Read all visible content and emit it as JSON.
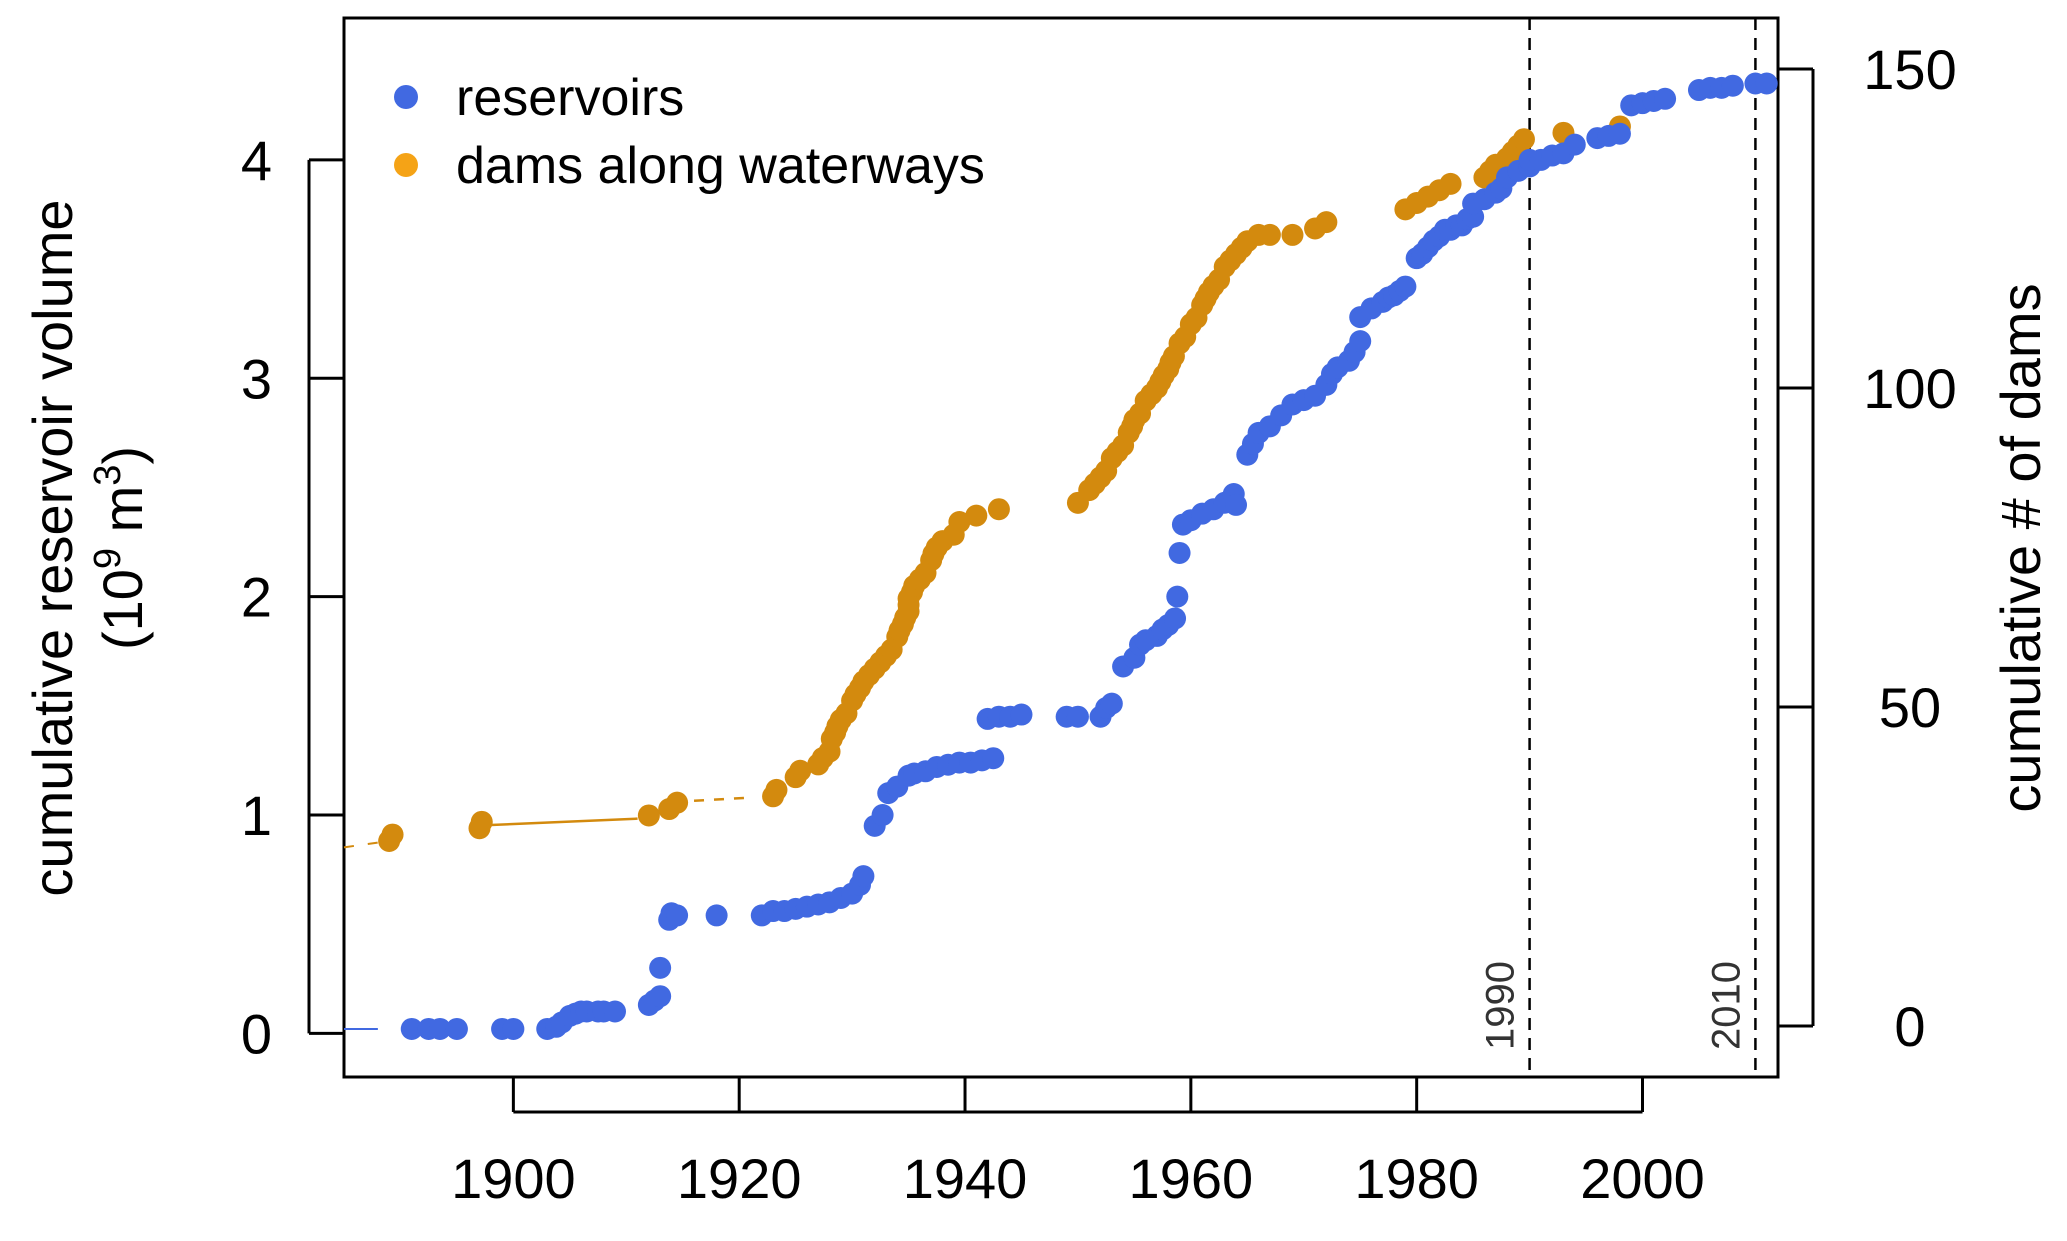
{
  "chart_data": {
    "type": "scatter",
    "xlim": [
      1885,
      2012
    ],
    "ylim_left": [
      -0.2,
      4.65
    ],
    "ylim_right": [
      -8,
      158
    ],
    "x_ticks": [
      "1900",
      "1920",
      "1940",
      "1960",
      "1980",
      "2000"
    ],
    "y_left_ticks": [
      "0",
      "1",
      "2",
      "3",
      "4"
    ],
    "y_right_ticks": [
      "0",
      "50",
      "100",
      "150"
    ],
    "ylabel_left_line1": "cumulative reservoir volume",
    "ylabel_left_line2_prefix": "(10",
    "ylabel_left_line2_exp1": "9",
    "ylabel_left_line2_mid": " m",
    "ylabel_left_line2_exp2": "3",
    "ylabel_left_line2_suffix": ")",
    "ylabel_right": "cumulative # of dams",
    "legend": {
      "position": "top-left",
      "entries": [
        "reservoirs",
        "dams along waterways"
      ]
    },
    "reference_lines": [
      {
        "x": 1990,
        "label": "1990"
      },
      {
        "x": 2010,
        "label": "2010"
      }
    ],
    "colors": {
      "reservoirs": "#4169E1",
      "dams": "#D38A0E"
    },
    "series": [
      {
        "name": "reservoirs",
        "axis": "left",
        "points": [
          [
            1891,
            0.02
          ],
          [
            1892.5,
            0.02
          ],
          [
            1893.5,
            0.02
          ],
          [
            1895,
            0.02
          ],
          [
            1899,
            0.02
          ],
          [
            1900,
            0.02
          ],
          [
            1903,
            0.02
          ],
          [
            1903.8,
            0.03
          ],
          [
            1904.3,
            0.05
          ],
          [
            1905,
            0.08
          ],
          [
            1905.5,
            0.09
          ],
          [
            1906,
            0.1
          ],
          [
            1906.5,
            0.1
          ],
          [
            1907.5,
            0.1
          ],
          [
            1908,
            0.1
          ],
          [
            1909,
            0.1
          ],
          [
            1912,
            0.13
          ],
          [
            1912.5,
            0.15
          ],
          [
            1913,
            0.17
          ],
          [
            1913,
            0.3
          ],
          [
            1913.8,
            0.52
          ],
          [
            1914,
            0.55
          ],
          [
            1914.5,
            0.54
          ],
          [
            1918,
            0.54
          ],
          [
            1922,
            0.54
          ],
          [
            1923,
            0.56
          ],
          [
            1924,
            0.56
          ],
          [
            1925,
            0.57
          ],
          [
            1926,
            0.58
          ],
          [
            1927,
            0.59
          ],
          [
            1928,
            0.6
          ],
          [
            1929,
            0.62
          ],
          [
            1930,
            0.64
          ],
          [
            1930.7,
            0.68
          ],
          [
            1931,
            0.72
          ],
          [
            1932,
            0.95
          ],
          [
            1932.7,
            1.0
          ],
          [
            1933.2,
            1.1
          ],
          [
            1934,
            1.13
          ],
          [
            1935,
            1.18
          ],
          [
            1935.5,
            1.19
          ],
          [
            1936.5,
            1.2
          ],
          [
            1937.5,
            1.22
          ],
          [
            1938.5,
            1.23
          ],
          [
            1939.5,
            1.24
          ],
          [
            1940.5,
            1.24
          ],
          [
            1941.5,
            1.25
          ],
          [
            1942.5,
            1.26
          ],
          [
            1942,
            1.44
          ],
          [
            1943,
            1.45
          ],
          [
            1944,
            1.45
          ],
          [
            1945,
            1.46
          ],
          [
            1949,
            1.45
          ],
          [
            1950,
            1.45
          ],
          [
            1952,
            1.45
          ],
          [
            1952.5,
            1.49
          ],
          [
            1953,
            1.51
          ],
          [
            1954,
            1.68
          ],
          [
            1955,
            1.72
          ],
          [
            1955.5,
            1.78
          ],
          [
            1956,
            1.8
          ],
          [
            1957,
            1.82
          ],
          [
            1957.5,
            1.85
          ],
          [
            1958,
            1.87
          ],
          [
            1958.6,
            1.9
          ],
          [
            1958.8,
            2.0
          ],
          [
            1959,
            2.2
          ],
          [
            1959.3,
            2.33
          ],
          [
            1960,
            2.35
          ],
          [
            1961,
            2.38
          ],
          [
            1962,
            2.4
          ],
          [
            1963,
            2.43
          ],
          [
            1963.8,
            2.47
          ],
          [
            1964,
            2.42
          ],
          [
            1965,
            2.65
          ],
          [
            1965.5,
            2.7
          ],
          [
            1966,
            2.75
          ],
          [
            1967,
            2.78
          ],
          [
            1968,
            2.83
          ],
          [
            1969,
            2.88
          ],
          [
            1970,
            2.9
          ],
          [
            1971,
            2.92
          ],
          [
            1972,
            2.97
          ],
          [
            1972.5,
            3.02
          ],
          [
            1973,
            3.05
          ],
          [
            1974,
            3.08
          ],
          [
            1974.5,
            3.12
          ],
          [
            1975,
            3.17
          ],
          [
            1975,
            3.28
          ],
          [
            1976,
            3.32
          ],
          [
            1977,
            3.35
          ],
          [
            1977.5,
            3.37
          ],
          [
            1978,
            3.38
          ],
          [
            1978.5,
            3.4
          ],
          [
            1979,
            3.42
          ],
          [
            1980,
            3.55
          ],
          [
            1980.5,
            3.57
          ],
          [
            1981,
            3.6
          ],
          [
            1981.5,
            3.63
          ],
          [
            1982,
            3.65
          ],
          [
            1982.5,
            3.68
          ],
          [
            1983,
            3.68
          ],
          [
            1983.5,
            3.7
          ],
          [
            1984,
            3.7
          ],
          [
            1984.5,
            3.73
          ],
          [
            1985,
            3.74
          ],
          [
            1985,
            3.8
          ],
          [
            1986,
            3.82
          ],
          [
            1987,
            3.85
          ],
          [
            1987.5,
            3.87
          ],
          [
            1988,
            3.92
          ],
          [
            1989,
            3.95
          ],
          [
            1990,
            3.97
          ],
          [
            1990,
            4.0
          ],
          [
            1991,
            4.0
          ],
          [
            1992,
            4.02
          ],
          [
            1993,
            4.03
          ],
          [
            1994,
            4.07
          ],
          [
            1996,
            4.1
          ],
          [
            1997,
            4.11
          ],
          [
            1998,
            4.12
          ],
          [
            1999,
            4.25
          ],
          [
            2000,
            4.26
          ],
          [
            2001,
            4.27
          ],
          [
            2002,
            4.28
          ],
          [
            2005,
            4.32
          ],
          [
            2006,
            4.33
          ],
          [
            2007,
            4.33
          ],
          [
            2008,
            4.34
          ],
          [
            2010,
            4.35
          ],
          [
            2011,
            4.35
          ]
        ]
      },
      {
        "name": "dams along waterways",
        "axis": "right",
        "points": [
          [
            1889,
            29
          ],
          [
            1889.3,
            30
          ],
          [
            1897,
            31
          ],
          [
            1897.2,
            32
          ],
          [
            1912,
            33
          ],
          [
            1913.8,
            34
          ],
          [
            1914.5,
            35
          ],
          [
            1923,
            36
          ],
          [
            1923.3,
            37
          ],
          [
            1925,
            39
          ],
          [
            1925.4,
            40
          ],
          [
            1927,
            41
          ],
          [
            1927.4,
            42
          ],
          [
            1928,
            43
          ],
          [
            1928.2,
            45
          ],
          [
            1928.5,
            46
          ],
          [
            1928.7,
            47
          ],
          [
            1929,
            48
          ],
          [
            1929.5,
            49
          ],
          [
            1930,
            51
          ],
          [
            1930.3,
            52
          ],
          [
            1930.7,
            53
          ],
          [
            1931,
            54
          ],
          [
            1931.5,
            55
          ],
          [
            1932,
            56
          ],
          [
            1932.5,
            57
          ],
          [
            1933,
            58
          ],
          [
            1933.5,
            59
          ],
          [
            1934,
            61
          ],
          [
            1934.2,
            62
          ],
          [
            1934.5,
            63
          ],
          [
            1934.7,
            64
          ],
          [
            1935,
            65
          ],
          [
            1935,
            66
          ],
          [
            1935,
            67
          ],
          [
            1935.3,
            68
          ],
          [
            1935.5,
            69
          ],
          [
            1936,
            70
          ],
          [
            1936.5,
            71
          ],
          [
            1937,
            73
          ],
          [
            1937.2,
            74
          ],
          [
            1937.5,
            75
          ],
          [
            1938,
            76
          ],
          [
            1939,
            77
          ],
          [
            1939.5,
            79
          ],
          [
            1941,
            80
          ],
          [
            1943,
            81
          ],
          [
            1950,
            82
          ],
          [
            1951,
            84
          ],
          [
            1951.5,
            85
          ],
          [
            1952,
            86
          ],
          [
            1952.5,
            87
          ],
          [
            1953,
            89
          ],
          [
            1953.5,
            90
          ],
          [
            1954,
            91
          ],
          [
            1954.5,
            93
          ],
          [
            1954.8,
            94
          ],
          [
            1955,
            95
          ],
          [
            1955.5,
            96
          ],
          [
            1956,
            98
          ],
          [
            1956.5,
            99
          ],
          [
            1957,
            100
          ],
          [
            1957.3,
            101
          ],
          [
            1957.6,
            102
          ],
          [
            1958,
            103
          ],
          [
            1958.2,
            104
          ],
          [
            1958.5,
            105
          ],
          [
            1959,
            107
          ],
          [
            1959.5,
            108
          ],
          [
            1960,
            110
          ],
          [
            1960.5,
            111
          ],
          [
            1961,
            113
          ],
          [
            1961.3,
            114
          ],
          [
            1961.6,
            115
          ],
          [
            1962,
            116
          ],
          [
            1962.5,
            117
          ],
          [
            1963,
            119
          ],
          [
            1963.5,
            120
          ],
          [
            1964,
            121
          ],
          [
            1964.5,
            122
          ],
          [
            1965,
            123
          ],
          [
            1966,
            124
          ],
          [
            1967,
            124
          ],
          [
            1969,
            124
          ],
          [
            1971,
            125
          ],
          [
            1972,
            126
          ],
          [
            1979,
            128
          ],
          [
            1980,
            129
          ],
          [
            1981,
            130
          ],
          [
            1982,
            131
          ],
          [
            1983,
            132
          ],
          [
            1986,
            133
          ],
          [
            1986.5,
            134
          ],
          [
            1987,
            135
          ],
          [
            1988,
            136
          ],
          [
            1988.5,
            137
          ],
          [
            1989,
            138
          ],
          [
            1989.5,
            139
          ],
          [
            1993,
            140
          ],
          [
            1998,
            141
          ]
        ]
      }
    ]
  }
}
